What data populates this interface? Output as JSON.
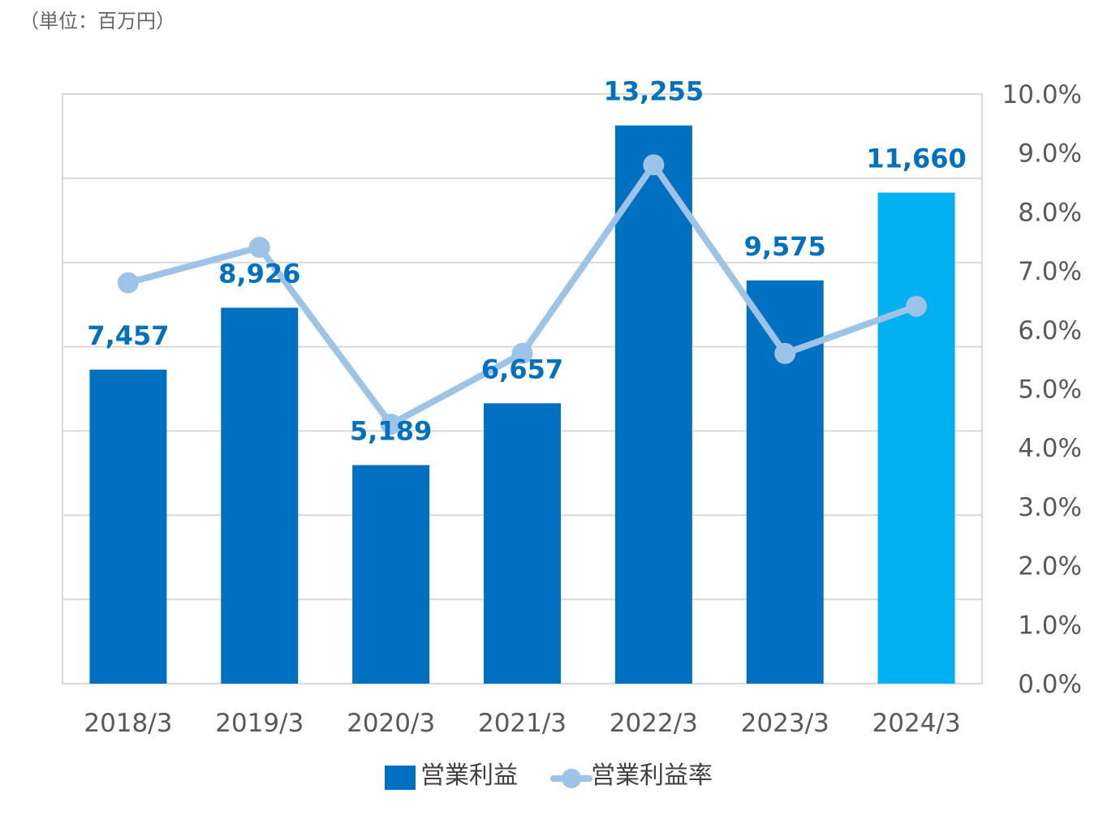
{
  "unit_label": "（単位：百万円）",
  "chart_data": {
    "type": "bar",
    "categories": [
      "2018/3",
      "2019/3",
      "2020/3",
      "2021/3",
      "2022/3",
      "2023/3",
      "2024/3"
    ],
    "series": [
      {
        "name": "営業利益",
        "type": "bar",
        "values": [
          7457,
          8926,
          5189,
          6657,
          13255,
          9575,
          11660
        ],
        "labels": [
          "7,457",
          "8,926",
          "5,189",
          "6,657",
          "13,255",
          "9,575",
          "11,660"
        ],
        "colors": [
          "#0070C0",
          "#0070C0",
          "#0070C0",
          "#0070C0",
          "#0070C0",
          "#0070C0",
          "#00B0F0"
        ]
      },
      {
        "name": "営業利益率",
        "type": "line",
        "axis": "right",
        "values": [
          6.8,
          7.4,
          4.4,
          5.6,
          8.8,
          5.6,
          6.4
        ],
        "color": "#9DC3E6"
      }
    ],
    "y_left": {
      "min": 0,
      "max": 14000,
      "labels_shown": false
    },
    "y_right": {
      "min": 0,
      "max": 10,
      "ticks": [
        "0.0%",
        "1.0%",
        "2.0%",
        "3.0%",
        "4.0%",
        "5.0%",
        "6.0%",
        "7.0%",
        "8.0%",
        "9.0%",
        "10.0%"
      ]
    },
    "grid": true,
    "legend": "bottom"
  }
}
